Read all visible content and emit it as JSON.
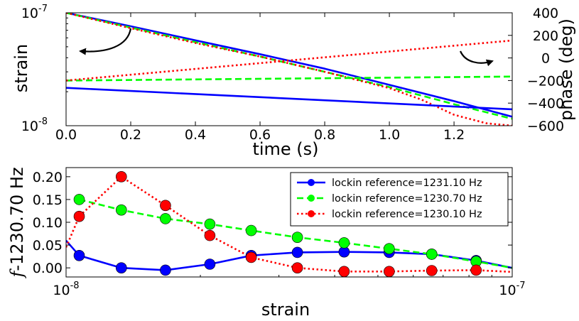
{
  "chart_data": [
    {
      "type": "line",
      "xlabel": "time (s)",
      "ylabel": "strain",
      "y2label": "phase (deg)",
      "xlim": [
        0.0,
        1.38
      ],
      "ylim": [
        1e-08,
        1e-07
      ],
      "yscale": "log",
      "y2lim": [
        -600,
        400
      ],
      "x_ticks": [
        "0.0",
        "0.2",
        "0.4",
        "0.6",
        "0.8",
        "1.0",
        "1.2"
      ],
      "y_ticks": [
        {
          "mantissa": "10",
          "exponent": "-8",
          "value": 1e-08
        },
        {
          "mantissa": "10",
          "exponent": "-7",
          "value": 1e-07
        }
      ],
      "y2_ticks": [
        "400",
        "200",
        "0",
        "−200",
        "−400",
        "−600"
      ],
      "annotations": [
        {
          "type": "curved-arrow",
          "points_to": "left axis (strain)"
        },
        {
          "type": "curved-arrow",
          "points_to": "right axis (phase)"
        }
      ],
      "series": [
        {
          "color": "#0000ff",
          "style": "solid",
          "axis": "left",
          "points": [
            [
              0.0,
              1e-07
            ],
            [
              0.2,
              7.6e-08
            ],
            [
              0.4,
              5.7e-08
            ],
            [
              0.6,
              4.3e-08
            ],
            [
              0.8,
              3.2e-08
            ],
            [
              1.0,
              2.3e-08
            ],
            [
              1.2,
              1.65e-08
            ],
            [
              1.38,
              1.2e-08
            ]
          ]
        },
        {
          "color": "#00ff00",
          "style": "dashed",
          "axis": "left",
          "points": [
            [
              0.0,
              1e-07
            ],
            [
              0.2,
              7.4e-08
            ],
            [
              0.4,
              5.5e-08
            ],
            [
              0.6,
              4.1e-08
            ],
            [
              0.8,
              3e-08
            ],
            [
              1.0,
              2.2e-08
            ],
            [
              1.2,
              1.55e-08
            ],
            [
              1.38,
              1.15e-08
            ]
          ]
        },
        {
          "color": "#ff0000",
          "style": "dotted",
          "axis": "left",
          "points": [
            [
              0.0,
              1e-07
            ],
            [
              0.2,
              7.3e-08
            ],
            [
              0.4,
              5.4e-08
            ],
            [
              0.6,
              4.1e-08
            ],
            [
              0.8,
              3e-08
            ],
            [
              1.0,
              2.15e-08
            ],
            [
              1.1,
              1.7e-08
            ],
            [
              1.2,
              1.25e-08
            ],
            [
              1.3,
              1.05e-08
            ],
            [
              1.38,
              1e-08
            ]
          ]
        },
        {
          "color": "#0000ff",
          "style": "solid",
          "axis": "right",
          "points": [
            [
              0.0,
              -265
            ],
            [
              1.38,
              -455
            ]
          ]
        },
        {
          "color": "#00ff00",
          "style": "dashed",
          "axis": "right",
          "points": [
            [
              0.0,
              -200
            ],
            [
              1.38,
              -165
            ]
          ]
        },
        {
          "color": "#ff0000",
          "style": "dotted",
          "axis": "right",
          "points": [
            [
              0.0,
              -200
            ],
            [
              1.38,
              155
            ]
          ]
        }
      ]
    },
    {
      "type": "line",
      "xlabel": "strain",
      "ylabel": "f-1230.70 Hz",
      "ylabel_italic_part": "f",
      "ylabel_rest": "-1230.70 Hz",
      "xlim": [
        1e-08,
        1e-07
      ],
      "xscale": "log",
      "ylim": [
        -0.02,
        0.22
      ],
      "x_ticks": [
        {
          "mantissa": "10",
          "exponent": "-8",
          "value": 1e-08
        },
        {
          "mantissa": "10",
          "exponent": "-7",
          "value": 1e-07
        }
      ],
      "y_ticks": [
        "0.00",
        "0.05",
        "0.10",
        "0.15",
        "0.20"
      ],
      "y_tick_values": [
        0.0,
        0.05,
        0.1,
        0.15,
        0.2
      ],
      "legend_position": "top-right",
      "series": [
        {
          "name": "lockin reference=1231.10 Hz",
          "color": "#0000ff",
          "style": "solid",
          "marker": "circle",
          "line_points": [
            [
              1e-08,
              0.06
            ],
            [
              1.07e-08,
              0.027
            ],
            [
              1.33e-08,
              0.0
            ],
            [
              1.67e-08,
              -0.005
            ],
            [
              2.1e-08,
              0.008
            ],
            [
              2.6e-08,
              0.027
            ],
            [
              3.3e-08,
              0.034
            ],
            [
              4.2e-08,
              0.035
            ],
            [
              5.3e-08,
              0.034
            ],
            [
              6.6e-08,
              0.03
            ],
            [
              8.3e-08,
              0.016
            ],
            [
              1e-07,
              0.0
            ]
          ],
          "marker_points": [
            [
              1.07e-08,
              0.027
            ],
            [
              1.33e-08,
              0.0
            ],
            [
              1.67e-08,
              -0.005
            ],
            [
              2.1e-08,
              0.008
            ],
            [
              2.6e-08,
              0.027
            ],
            [
              3.3e-08,
              0.034
            ],
            [
              4.2e-08,
              0.035
            ],
            [
              5.3e-08,
              0.034
            ],
            [
              6.6e-08,
              0.03
            ],
            [
              8.3e-08,
              0.016
            ]
          ]
        },
        {
          "name": "lockin reference=1230.70 Hz",
          "color": "#00ff00",
          "style": "dashed",
          "marker": "circle",
          "line_points": [
            [
              1.07e-08,
              0.15
            ],
            [
              1.33e-08,
              0.127
            ],
            [
              1.67e-08,
              0.108
            ],
            [
              2.1e-08,
              0.096
            ],
            [
              2.6e-08,
              0.082
            ],
            [
              3.3e-08,
              0.067
            ],
            [
              4.2e-08,
              0.055
            ],
            [
              5.3e-08,
              0.042
            ],
            [
              6.6e-08,
              0.03
            ],
            [
              8.3e-08,
              0.014
            ],
            [
              1e-07,
              0.0
            ]
          ],
          "marker_points": [
            [
              1.07e-08,
              0.15
            ],
            [
              1.33e-08,
              0.127
            ],
            [
              1.67e-08,
              0.108
            ],
            [
              2.1e-08,
              0.096
            ],
            [
              2.6e-08,
              0.082
            ],
            [
              3.3e-08,
              0.067
            ],
            [
              4.2e-08,
              0.055
            ],
            [
              5.3e-08,
              0.042
            ],
            [
              6.6e-08,
              0.03
            ],
            [
              8.3e-08,
              0.014
            ]
          ]
        },
        {
          "name": "lockin reference=1230.10 Hz",
          "color": "#ff0000",
          "style": "dotted",
          "marker": "circle",
          "line_points": [
            [
              1e-08,
              0.045
            ],
            [
              1.07e-08,
              0.113
            ],
            [
              1.33e-08,
              0.2
            ],
            [
              1.67e-08,
              0.137
            ],
            [
              2.1e-08,
              0.071
            ],
            [
              2.6e-08,
              0.023
            ],
            [
              3.3e-08,
              0.0
            ],
            [
              4.2e-08,
              -0.008
            ],
            [
              5.3e-08,
              -0.008
            ],
            [
              6.6e-08,
              -0.006
            ],
            [
              8.3e-08,
              -0.005
            ],
            [
              1e-07,
              -0.009
            ]
          ],
          "marker_points": [
            [
              1.07e-08,
              0.113
            ],
            [
              1.33e-08,
              0.2
            ],
            [
              1.67e-08,
              0.137
            ],
            [
              2.1e-08,
              0.071
            ],
            [
              2.6e-08,
              0.023
            ],
            [
              3.3e-08,
              0.0
            ],
            [
              4.2e-08,
              -0.008
            ],
            [
              5.3e-08,
              -0.008
            ],
            [
              6.6e-08,
              -0.006
            ],
            [
              8.3e-08,
              -0.005
            ]
          ]
        }
      ]
    }
  ]
}
